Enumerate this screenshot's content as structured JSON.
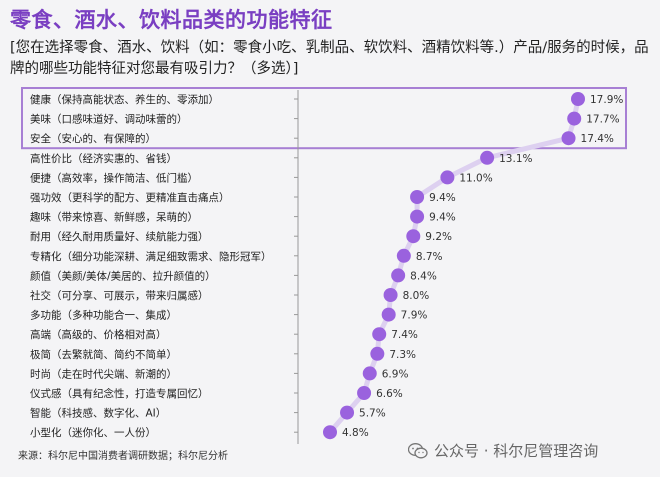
{
  "header": {
    "title": "零食、酒水、饮料品类的功能特征",
    "question": "[您在选择零食、酒水、饮料（如：零食小吃、乳制品、软饮料、酒精饮料等.）产品/服务的时候，品牌的哪些功能特征对您最有吸引力？（多选）]"
  },
  "footer": {
    "source": "来源：科尔尼中国消费者调研数据；科尔尼分析",
    "watermark": "公众号 · 科尔尼管理咨询",
    "watermark_icon": "wechat-icon"
  },
  "colors": {
    "title": "#7a3fc2",
    "dot": "#9a62de",
    "line": "#ddd0f0",
    "highlight_border": "#a77fd4"
  },
  "chart_data": {
    "type": "scatter",
    "orientation": "horizontal-lollipop",
    "categories": [
      "健康（保持高能状态、养生的、零添加）",
      "美味（口感味道好、调动味蕾的）",
      "安全（安心的、有保障的）",
      "高性价比（经济实惠的、省钱）",
      "便捷（高效率，操作简洁、低门槛）",
      "强功效（更科学的配方、更精准直击痛点）",
      "趣味（带来惊喜、新鲜感，呆萌的）",
      "耐用（经久耐用质量好、续航能力强）",
      "专精化（细分功能深耕、满足细致需求、隐形冠军）",
      "颜值（美颜/美体/美居的、拉升颜值的）",
      "社交（可分享、可展示，带来归属感）",
      "多功能（多种功能合一、集成）",
      "高端（高级的、价格相对高）",
      "极简（去繁就简、简约不简单）",
      "时尚（走在时代尖端、新潮的）",
      "仪式感（具有纪念性，打造专属回忆）",
      "智能（科技感、数字化、AI）",
      "小型化（迷你化、一人份）"
    ],
    "values": [
      17.9,
      17.7,
      17.4,
      13.1,
      11.0,
      9.4,
      9.4,
      9.2,
      8.7,
      8.4,
      8.0,
      7.9,
      7.4,
      7.3,
      6.9,
      6.6,
      5.7,
      4.8
    ],
    "value_labels": [
      "17.9%",
      "17.7%",
      "17.4%",
      "13.1%",
      "11.0%",
      "9.4%",
      "9.4%",
      "9.2%",
      "8.7%",
      "8.4%",
      "8.0%",
      "7.9%",
      "7.4%",
      "7.3%",
      "6.9%",
      "6.6%",
      "5.7%",
      "4.8%"
    ],
    "unit": "%",
    "highlighted_top_n": 3,
    "grid": false,
    "legend": "none"
  }
}
